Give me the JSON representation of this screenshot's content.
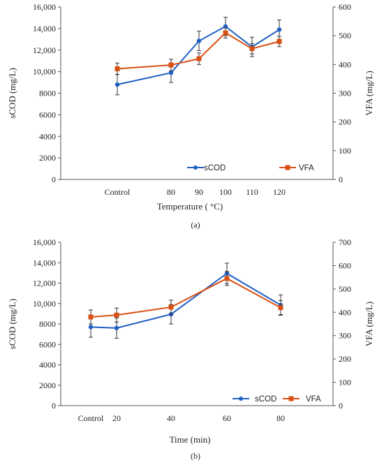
{
  "colors": {
    "scod": "#1f5fc4",
    "vfa": "#d94f12",
    "axis": "#555555",
    "errorbar": "#333333"
  },
  "chart_data": [
    {
      "type": "line",
      "panel_label": "(a)",
      "x_categories": [
        "Control",
        "80",
        "90",
        "100",
        "110",
        "120"
      ],
      "xlabel": "Temperature ( °C)",
      "ylabel_left": "sCOD (mg/L)",
      "ylabel_right": "VFA (mg/L)",
      "ylim_left": [
        0,
        16000
      ],
      "ylim_right": [
        0,
        600
      ],
      "yticks_left": [
        "0",
        "2000",
        "4000",
        "6000",
        "8000",
        "10,000",
        "12,000",
        "14,000",
        "16,000"
      ],
      "yticks_right": [
        "0",
        "100",
        "200",
        "300",
        "400",
        "500",
        "600"
      ],
      "legend": {
        "placement": "bottom-right",
        "entries": [
          "sCOD",
          "VFA"
        ]
      },
      "series": [
        {
          "name": "sCOD",
          "axis": "left",
          "values": [
            8800,
            9900,
            12850,
            14200,
            12300,
            13900
          ],
          "errors": [
            950,
            900,
            900,
            850,
            900,
            900
          ]
        },
        {
          "name": "VFA",
          "axis": "right",
          "values": [
            385,
            398,
            420,
            510,
            455,
            480
          ],
          "errors": [
            20,
            20,
            20,
            18,
            18,
            18
          ]
        }
      ]
    },
    {
      "type": "line",
      "panel_label": "(b)",
      "x_categories": [
        "Control",
        "20",
        "40",
        "60",
        "80"
      ],
      "xlabel": "Time (min)",
      "ylabel_left": "sCOD (mg/L)",
      "ylabel_right": "VFA (mg/L)",
      "ylim_left": [
        0,
        16000
      ],
      "ylim_right": [
        0,
        700
      ],
      "yticks_left": [
        "0",
        "2000",
        "4000",
        "6000",
        "8000",
        "10,000",
        "12,000",
        "14,000",
        "16,000"
      ],
      "yticks_right": [
        "0",
        "100",
        "200",
        "300",
        "400",
        "500",
        "600",
        "700"
      ],
      "legend": {
        "placement": "bottom-right",
        "entries": [
          "sCOD",
          "VFA"
        ]
      },
      "series": [
        {
          "name": "sCOD",
          "axis": "left",
          "values": [
            7700,
            7600,
            8950,
            12950,
            9850
          ],
          "errors": [
            1000,
            1000,
            950,
            1000,
            1000
          ]
        },
        {
          "name": "VFA",
          "axis": "right",
          "values": [
            380,
            388,
            422,
            545,
            420
          ],
          "errors": [
            30,
            30,
            30,
            30,
            30
          ]
        }
      ]
    }
  ]
}
